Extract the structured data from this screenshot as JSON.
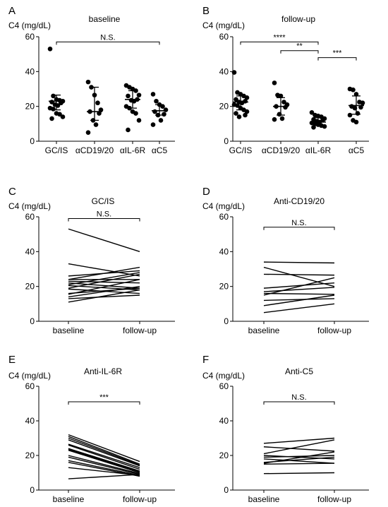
{
  "chart_data": [
    {
      "panel": "A",
      "type": "scatter",
      "title": "baseline",
      "ylabel": "C4 (mg/dL)",
      "ylim": [
        0,
        60
      ],
      "yticks": [
        0,
        20,
        40,
        60
      ],
      "categories": [
        "GC/IS",
        "αCD19/20",
        "αIL-6R",
        "αC5"
      ],
      "points": [
        [
          53,
          26,
          24,
          23.5,
          23,
          22.5,
          22,
          21,
          20.5,
          19,
          18.5,
          16,
          15.5,
          14,
          13
        ],
        [
          34,
          31,
          26.5,
          22,
          18,
          17,
          16,
          12,
          9.5,
          5
        ],
        [
          32,
          31,
          30,
          29,
          26.5,
          26,
          24,
          23.5,
          23,
          20,
          19,
          17,
          16,
          12,
          6.5
        ],
        [
          27,
          23,
          21,
          20,
          18,
          17,
          15.5,
          15,
          12,
          9.5
        ]
      ],
      "summary": [
        {
          "mid": 23,
          "low": 18,
          "high": 26.5
        },
        {
          "mid": 17,
          "low": 12,
          "high": 31
        },
        {
          "mid": 24,
          "low": 19,
          "high": 29
        },
        {
          "mid": 17.5,
          "low": 15,
          "high": 21
        }
      ],
      "brackets": [
        {
          "from": 0,
          "to": 3,
          "y": 57,
          "label": "N.S."
        }
      ]
    },
    {
      "panel": "B",
      "type": "scatter",
      "title": "follow-up",
      "ylabel": "C4 (mg/dL)",
      "ylim": [
        0,
        60
      ],
      "yticks": [
        0,
        20,
        40,
        60
      ],
      "categories": [
        "GC/IS",
        "αCD19/20",
        "αIL-6R",
        "αC5"
      ],
      "points": [
        [
          39.5,
          28,
          27,
          26,
          25,
          24,
          23,
          22.5,
          22,
          21,
          20.5,
          19,
          18,
          17,
          16,
          15,
          14
        ],
        [
          33.5,
          26.5,
          26,
          22.5,
          21,
          20,
          19.5,
          15.5,
          13,
          12.5
        ],
        [
          16.5,
          15,
          14.5,
          14,
          13,
          12.5,
          12,
          11.5,
          11,
          10.5,
          10,
          9.5,
          9,
          8.5,
          8
        ],
        [
          30,
          29.5,
          27,
          22.5,
          22,
          20,
          19.5,
          19,
          16,
          15,
          12,
          11
        ]
      ],
      "summary": [
        {
          "mid": 22.5,
          "low": 18,
          "high": 26
        },
        {
          "mid": 20,
          "low": 15,
          "high": 25
        },
        {
          "mid": 11,
          "low": 9,
          "high": 13.5
        },
        {
          "mid": 20.5,
          "low": 15.5,
          "high": 26
        }
      ],
      "brackets": [
        {
          "from": 0,
          "to": 2,
          "y": 57,
          "label": "****"
        },
        {
          "from": 1,
          "to": 2,
          "y": 52,
          "label": "**"
        },
        {
          "from": 2,
          "to": 3,
          "y": 48,
          "label": "***"
        }
      ]
    },
    {
      "panel": "C",
      "type": "line",
      "title": "GC/IS",
      "ylabel": "C4 (mg/dL)",
      "ylim": [
        0,
        60
      ],
      "yticks": [
        0,
        20,
        40,
        60
      ],
      "categories": [
        "baseline",
        "follow-up"
      ],
      "pairs": [
        [
          53,
          40
        ],
        [
          33,
          26
        ],
        [
          26,
          29
        ],
        [
          24,
          31
        ],
        [
          24,
          24
        ],
        [
          23,
          22
        ],
        [
          22,
          19
        ],
        [
          21,
          28
        ],
        [
          20.5,
          18
        ],
        [
          19,
          27
        ],
        [
          18.5,
          16
        ],
        [
          16,
          19
        ],
        [
          15.5,
          24
        ],
        [
          14,
          20
        ],
        [
          13,
          15
        ],
        [
          11,
          18
        ]
      ],
      "bracket": {
        "y": 59,
        "label": "N.S."
      }
    },
    {
      "panel": "D",
      "type": "line",
      "title": "Anti-CD19/20",
      "ylabel": "C4 (mg/dL)",
      "ylim": [
        0,
        60
      ],
      "yticks": [
        0,
        20,
        40,
        60
      ],
      "categories": [
        "baseline",
        "follow-up"
      ],
      "pairs": [
        [
          34,
          33.5
        ],
        [
          31,
          20
        ],
        [
          27,
          26.5
        ],
        [
          19,
          22
        ],
        [
          17,
          19.5
        ],
        [
          16,
          15.5
        ],
        [
          15,
          25
        ],
        [
          12,
          13
        ],
        [
          9,
          15
        ],
        [
          5,
          10
        ]
      ],
      "bracket": {
        "y": 54,
        "label": "N.S."
      }
    },
    {
      "panel": "E",
      "type": "line",
      "title": "Anti-IL-6R",
      "ylabel": "C4 (mg/dL)",
      "ylim": [
        0,
        60
      ],
      "yticks": [
        0,
        20,
        40,
        60
      ],
      "categories": [
        "baseline",
        "follow-up"
      ],
      "pairs": [
        [
          32,
          16.5
        ],
        [
          31,
          15
        ],
        [
          30,
          14.5
        ],
        [
          29,
          14
        ],
        [
          26.5,
          13
        ],
        [
          26,
          12
        ],
        [
          24,
          11
        ],
        [
          23.5,
          10.5
        ],
        [
          23,
          10
        ],
        [
          20,
          9.5
        ],
        [
          19,
          9
        ],
        [
          17,
          8.5
        ],
        [
          16,
          8
        ],
        [
          13,
          8.5
        ],
        [
          6.5,
          9
        ]
      ],
      "bracket": {
        "y": 51,
        "label": "***"
      }
    },
    {
      "panel": "F",
      "type": "line",
      "title": "Anti-C5",
      "ylabel": "C4 (mg/dL)",
      "ylim": [
        0,
        60
      ],
      "yticks": [
        0,
        20,
        40,
        60
      ],
      "categories": [
        "baseline",
        "follow-up"
      ],
      "pairs": [
        [
          27,
          30
        ],
        [
          25,
          22.5
        ],
        [
          21,
          29
        ],
        [
          20,
          18
        ],
        [
          19,
          20
        ],
        [
          18,
          15.5
        ],
        [
          16,
          19
        ],
        [
          15.5,
          22
        ],
        [
          15,
          15.5
        ],
        [
          9.5,
          10
        ]
      ],
      "bracket": {
        "y": 51,
        "label": "N.S."
      }
    }
  ]
}
